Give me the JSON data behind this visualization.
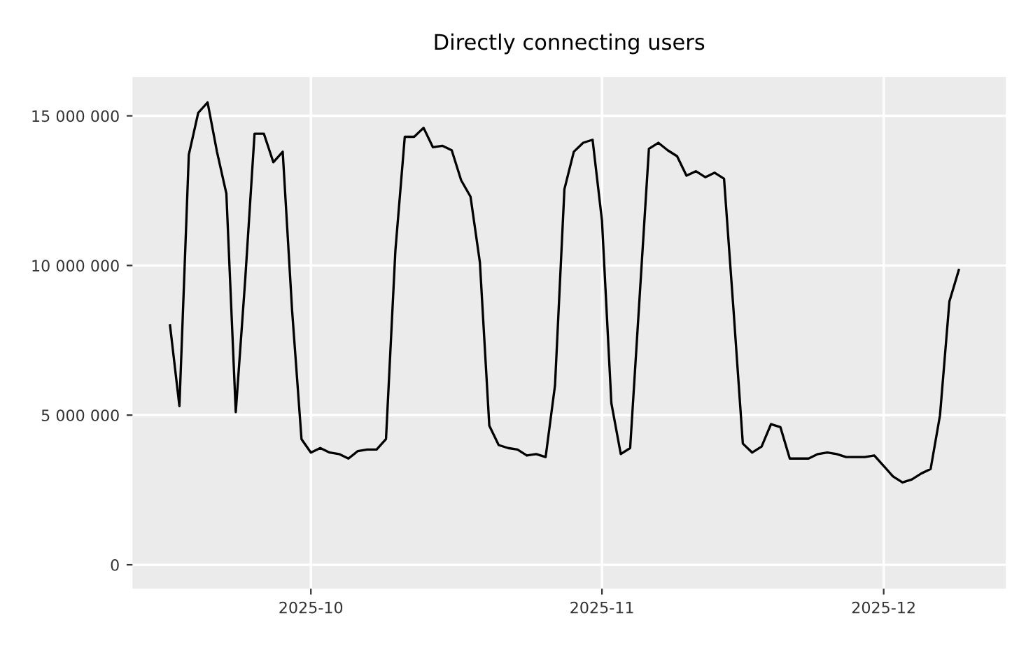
{
  "chart_data": {
    "type": "line",
    "title": "Directly connecting users",
    "x": [
      "2025-09-16",
      "2025-09-17",
      "2025-09-18",
      "2025-09-19",
      "2025-09-20",
      "2025-09-21",
      "2025-09-22",
      "2025-09-23",
      "2025-09-24",
      "2025-09-25",
      "2025-09-26",
      "2025-09-27",
      "2025-09-28",
      "2025-09-29",
      "2025-09-30",
      "2025-10-01",
      "2025-10-02",
      "2025-10-03",
      "2025-10-04",
      "2025-10-05",
      "2025-10-06",
      "2025-10-07",
      "2025-10-08",
      "2025-10-09",
      "2025-10-10",
      "2025-10-11",
      "2025-10-12",
      "2025-10-13",
      "2025-10-14",
      "2025-10-15",
      "2025-10-16",
      "2025-10-17",
      "2025-10-18",
      "2025-10-19",
      "2025-10-20",
      "2025-10-21",
      "2025-10-22",
      "2025-10-23",
      "2025-10-24",
      "2025-10-25",
      "2025-10-26",
      "2025-10-27",
      "2025-10-28",
      "2025-10-29",
      "2025-10-30",
      "2025-10-31",
      "2025-11-01",
      "2025-11-02",
      "2025-11-03",
      "2025-11-04",
      "2025-11-05",
      "2025-11-06",
      "2025-11-07",
      "2025-11-08",
      "2025-11-09",
      "2025-11-10",
      "2025-11-11",
      "2025-11-12",
      "2025-11-13",
      "2025-11-14",
      "2025-11-15",
      "2025-11-16",
      "2025-11-17",
      "2025-11-18",
      "2025-11-19",
      "2025-11-20",
      "2025-11-21",
      "2025-11-22",
      "2025-11-23",
      "2025-11-24",
      "2025-11-25",
      "2025-11-26",
      "2025-11-27",
      "2025-11-28",
      "2025-11-29",
      "2025-11-30",
      "2025-12-01",
      "2025-12-02",
      "2025-12-03",
      "2025-12-04",
      "2025-12-05",
      "2025-12-06",
      "2025-12-07",
      "2025-12-08",
      "2025-12-09"
    ],
    "series": [
      {
        "color": "#000000",
        "values": [
          8000000,
          5300000,
          13700000,
          15100000,
          15450000,
          13800000,
          12400000,
          5100000,
          9500000,
          14400000,
          14400000,
          13450000,
          13800000,
          8500000,
          4200000,
          3750000,
          3900000,
          3750000,
          3700000,
          3550000,
          3800000,
          3850000,
          3850000,
          4200000,
          10500000,
          14300000,
          14300000,
          14600000,
          13950000,
          14000000,
          13850000,
          12850000,
          12300000,
          10100000,
          4650000,
          4000000,
          3900000,
          3850000,
          3650000,
          3700000,
          3600000,
          6000000,
          12550000,
          13800000,
          14100000,
          14200000,
          11500000,
          5400000,
          3700000,
          3900000,
          8900000,
          13900000,
          14100000,
          13850000,
          13650000,
          13000000,
          13150000,
          12950000,
          13100000,
          12900000,
          8550000,
          4050000,
          3750000,
          3950000,
          4700000,
          4600000,
          3550000,
          3550000,
          3550000,
          3700000,
          3750000,
          3700000,
          3600000,
          3600000,
          3600000,
          3650000,
          3300000,
          2950000,
          2750000,
          2850000,
          3050000,
          3200000,
          5000000,
          8800000,
          9850000
        ]
      }
    ],
    "xlim": [
      "2025-09-12",
      "2025-12-14"
    ],
    "xticks": [
      {
        "value": "2025-10-01",
        "label": "2025-10"
      },
      {
        "value": "2025-11-01",
        "label": "2025-11"
      },
      {
        "value": "2025-12-01",
        "label": "2025-12"
      }
    ],
    "ylim": [
      -800000,
      16300000
    ],
    "yticks": [
      {
        "value": 0,
        "label": "0"
      },
      {
        "value": 5000000,
        "label": "5 000 000"
      },
      {
        "value": 10000000,
        "label": "10 000 000"
      },
      {
        "value": 15000000,
        "label": "15 000 000"
      }
    ],
    "grid": true,
    "marker": "none",
    "line_style": "solid"
  }
}
